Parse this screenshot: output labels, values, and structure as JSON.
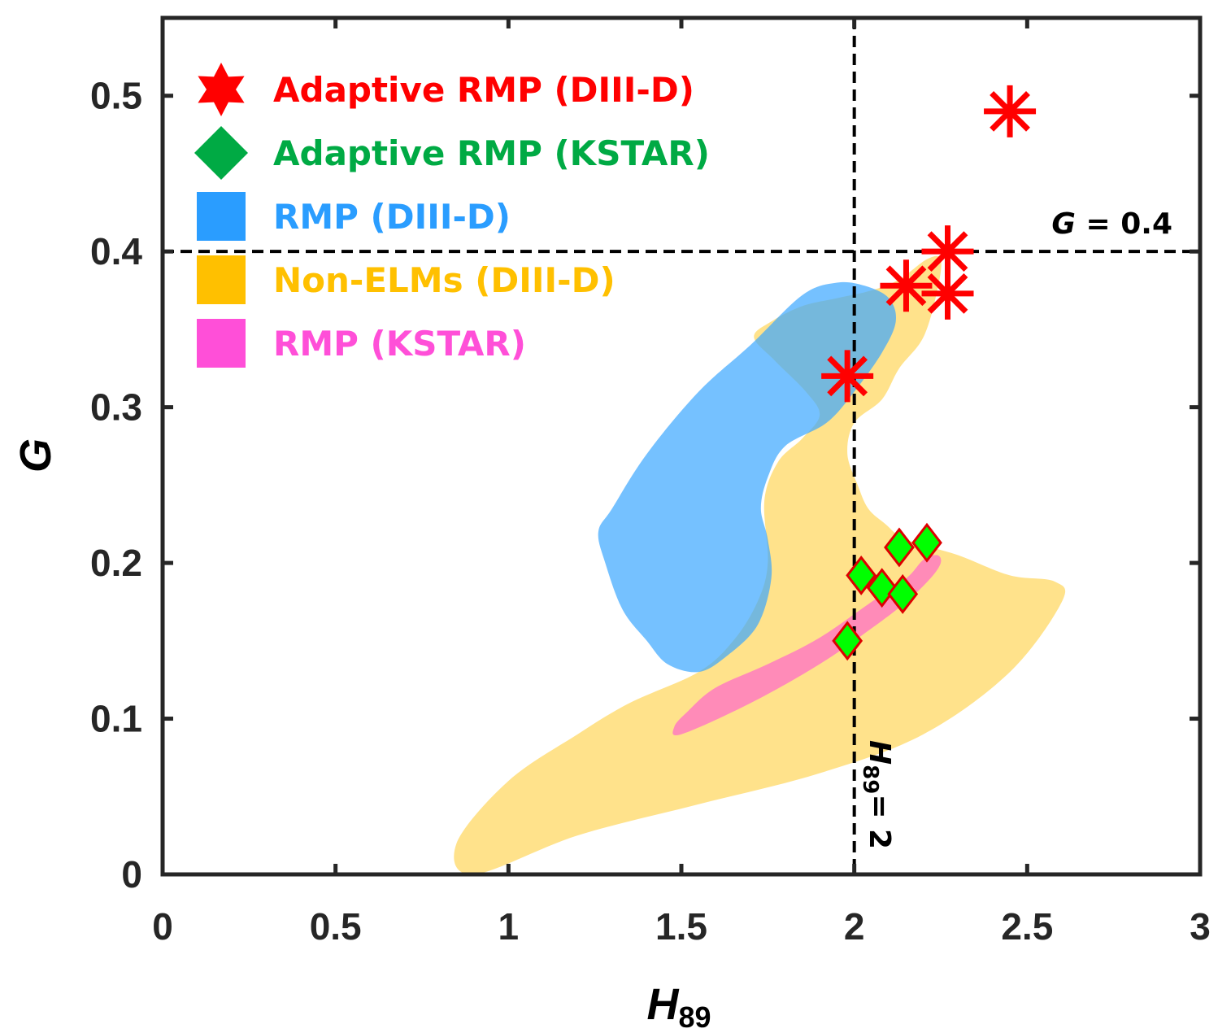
{
  "chart_data": {
    "type": "scatter",
    "xlabel": "H89",
    "xlabel_main": "H",
    "xlabel_sub": "89",
    "ylabel": "G",
    "xlim": [
      0,
      3
    ],
    "ylim": [
      0,
      0.55
    ],
    "xticks": [
      0,
      0.5,
      1,
      1.5,
      2,
      2.5,
      3
    ],
    "xtick_labels": [
      "0",
      "0.5",
      "1",
      "1.5",
      "2",
      "2.5",
      "3"
    ],
    "yticks": [
      0,
      0.1,
      0.2,
      0.3,
      0.4,
      0.5
    ],
    "ytick_labels": [
      "0",
      "0.1",
      "0.2",
      "0.3",
      "0.4",
      "0.5"
    ],
    "grid": false,
    "legend_position": "top-left",
    "reference_lines": [
      {
        "orientation": "horizontal",
        "value": 0.4,
        "label_var": "G",
        "label_text": " = 0.4"
      },
      {
        "orientation": "vertical",
        "value": 2,
        "label_var": "H",
        "label_sub": "89",
        "label_text": "= 2"
      }
    ],
    "series": [
      {
        "name": "Adaptive RMP (DIII-D)",
        "marker": "asterisk",
        "color": "#ff0000",
        "points": [
          [
            1.98,
            0.32
          ],
          [
            2.15,
            0.378
          ],
          [
            2.27,
            0.4
          ],
          [
            2.27,
            0.373
          ],
          [
            2.45,
            0.49
          ]
        ]
      },
      {
        "name": "Adaptive RMP (KSTAR)",
        "marker": "diamond",
        "color": "#00ff00",
        "edge_color": "#dd0000",
        "points": [
          [
            1.98,
            0.15
          ],
          [
            2.02,
            0.192
          ],
          [
            2.08,
            0.184
          ],
          [
            2.13,
            0.21
          ],
          [
            2.14,
            0.18
          ],
          [
            2.21,
            0.213
          ]
        ]
      },
      {
        "name": "RMP (DIII-D)",
        "type": "region",
        "color": "#3aa6ff",
        "opacity": 0.7,
        "outline": [
          [
            1.3,
            0.235
          ],
          [
            1.4,
            0.27
          ],
          [
            1.55,
            0.31
          ],
          [
            1.7,
            0.34
          ],
          [
            1.85,
            0.372
          ],
          [
            1.95,
            0.38
          ],
          [
            2.03,
            0.378
          ],
          [
            2.1,
            0.37
          ],
          [
            2.12,
            0.355
          ],
          [
            2.08,
            0.335
          ],
          [
            2.0,
            0.31
          ],
          [
            1.92,
            0.29
          ],
          [
            1.8,
            0.275
          ],
          [
            1.75,
            0.255
          ],
          [
            1.73,
            0.235
          ],
          [
            1.75,
            0.215
          ],
          [
            1.76,
            0.19
          ],
          [
            1.72,
            0.16
          ],
          [
            1.63,
            0.14
          ],
          [
            1.55,
            0.13
          ],
          [
            1.46,
            0.135
          ],
          [
            1.4,
            0.15
          ],
          [
            1.33,
            0.17
          ],
          [
            1.28,
            0.2
          ],
          [
            1.26,
            0.22
          ]
        ]
      },
      {
        "name": "Non-ELMs (DIII-D)",
        "type": "region",
        "color": "#ffd24d",
        "opacity": 0.65,
        "outline": [
          [
            0.9,
            0.0
          ],
          [
            1.2,
            0.025
          ],
          [
            1.55,
            0.045
          ],
          [
            1.9,
            0.065
          ],
          [
            2.2,
            0.09
          ],
          [
            2.45,
            0.13
          ],
          [
            2.6,
            0.175
          ],
          [
            2.58,
            0.188
          ],
          [
            2.45,
            0.192
          ],
          [
            2.3,
            0.205
          ],
          [
            2.15,
            0.215
          ],
          [
            2.09,
            0.225
          ],
          [
            2.04,
            0.235
          ],
          [
            2.01,
            0.25
          ],
          [
            1.98,
            0.27
          ],
          [
            2.0,
            0.29
          ],
          [
            2.08,
            0.305
          ],
          [
            2.13,
            0.325
          ],
          [
            2.2,
            0.345
          ],
          [
            2.24,
            0.375
          ],
          [
            2.25,
            0.395
          ],
          [
            2.21,
            0.395
          ],
          [
            2.13,
            0.382
          ],
          [
            2.05,
            0.375
          ],
          [
            1.95,
            0.37
          ],
          [
            1.85,
            0.365
          ],
          [
            1.76,
            0.355
          ],
          [
            1.71,
            0.345
          ],
          [
            1.77,
            0.33
          ],
          [
            1.86,
            0.31
          ],
          [
            1.9,
            0.295
          ],
          [
            1.85,
            0.28
          ],
          [
            1.78,
            0.265
          ],
          [
            1.74,
            0.24
          ],
          [
            1.75,
            0.2
          ],
          [
            1.72,
            0.175
          ],
          [
            1.65,
            0.15
          ],
          [
            1.55,
            0.13
          ],
          [
            1.35,
            0.11
          ],
          [
            1.2,
            0.09
          ],
          [
            1.0,
            0.06
          ],
          [
            0.85,
            0.02
          ]
        ]
      },
      {
        "name": "RMP (KSTAR)",
        "type": "region",
        "color": "#ff66cc",
        "opacity": 0.7,
        "outline": [
          [
            1.5,
            0.09
          ],
          [
            1.7,
            0.11
          ],
          [
            1.9,
            0.135
          ],
          [
            2.05,
            0.158
          ],
          [
            2.15,
            0.175
          ],
          [
            2.22,
            0.19
          ],
          [
            2.25,
            0.2
          ],
          [
            2.24,
            0.205
          ],
          [
            2.2,
            0.202
          ],
          [
            2.15,
            0.19
          ],
          [
            2.05,
            0.175
          ],
          [
            1.9,
            0.152
          ],
          [
            1.75,
            0.135
          ],
          [
            1.6,
            0.12
          ],
          [
            1.52,
            0.105
          ],
          [
            1.48,
            0.095
          ]
        ]
      }
    ]
  }
}
